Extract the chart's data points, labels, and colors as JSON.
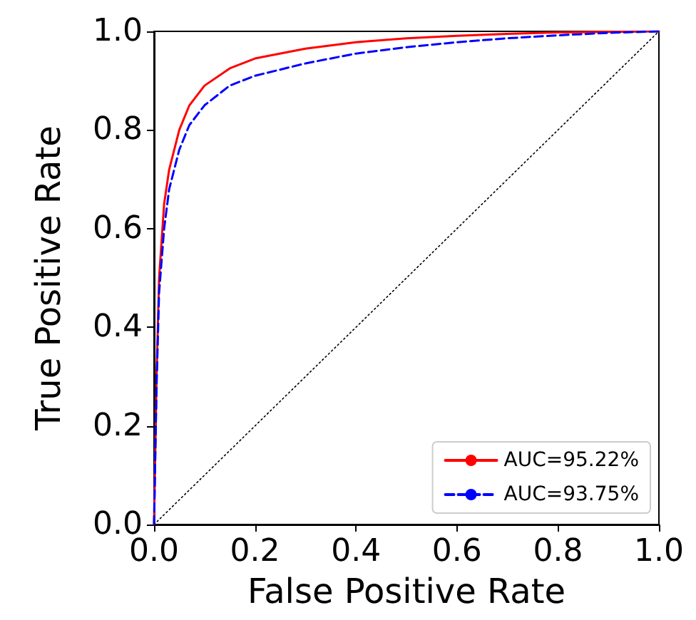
{
  "chart_data": {
    "type": "line",
    "xlabel": "False Positive Rate",
    "ylabel": "True Positive Rate",
    "xlim": [
      0,
      1
    ],
    "ylim": [
      0,
      1
    ],
    "xticks": [
      {
        "value": 0,
        "label": "0.0"
      },
      {
        "value": 0.2,
        "label": "0.2"
      },
      {
        "value": 0.4,
        "label": "0.4"
      },
      {
        "value": 0.6,
        "label": "0.6"
      },
      {
        "value": 0.8,
        "label": "0.8"
      },
      {
        "value": 1,
        "label": "1.0"
      }
    ],
    "yticks": [
      {
        "value": 0,
        "label": "0.0"
      },
      {
        "value": 0.2,
        "label": "0.2"
      },
      {
        "value": 0.4,
        "label": "0.4"
      },
      {
        "value": 0.6,
        "label": "0.6"
      },
      {
        "value": 0.8,
        "label": "0.8"
      },
      {
        "value": 1,
        "label": "1.0"
      }
    ],
    "grid": false,
    "legend": "bottom right",
    "marker": "none",
    "series": [
      {
        "name": "AUC=95.22%",
        "color": "#ff0000",
        "line_style": "solid",
        "x": [
          0,
          0.005,
          0.01,
          0.02,
          0.03,
          0.05,
          0.07,
          0.1,
          0.15,
          0.2,
          0.3,
          0.4,
          0.5,
          0.6,
          0.7,
          0.8,
          1
        ],
        "values": [
          0,
          0.3,
          0.5,
          0.65,
          0.72,
          0.8,
          0.85,
          0.89,
          0.925,
          0.945,
          0.965,
          0.978,
          0.986,
          0.991,
          0.995,
          0.998,
          1
        ]
      },
      {
        "name": "AUC=93.75%",
        "color": "#0000ff",
        "line_style": "dashed",
        "x": [
          0,
          0.005,
          0.01,
          0.02,
          0.03,
          0.05,
          0.07,
          0.1,
          0.15,
          0.2,
          0.3,
          0.4,
          0.5,
          0.6,
          0.7,
          0.8,
          0.9,
          1
        ],
        "values": [
          0,
          0.28,
          0.47,
          0.6,
          0.68,
          0.76,
          0.81,
          0.85,
          0.89,
          0.91,
          0.935,
          0.955,
          0.968,
          0.978,
          0.986,
          0.992,
          0.997,
          1
        ]
      },
      {
        "color": "#000000",
        "line_style": "dotted",
        "x": [
          0,
          1
        ],
        "values": [
          0,
          1
        ]
      }
    ]
  }
}
